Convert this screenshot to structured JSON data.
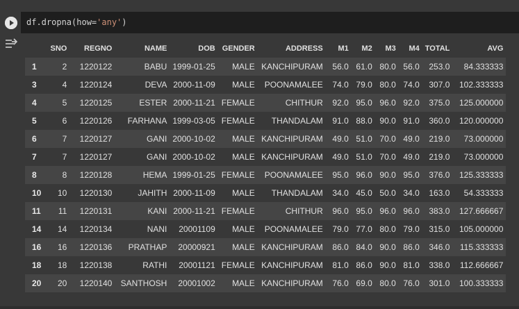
{
  "cell": {
    "code_prefix": "df.dropna(how=",
    "code_string": "'any'",
    "code_suffix": ")"
  },
  "icons": {
    "run": "play-icon",
    "output": "output-toggle-icon"
  },
  "table": {
    "columns": [
      "",
      "SNO",
      "REGNO",
      "NAME",
      "DOB",
      "GENDER",
      "ADDRESS",
      "M1",
      "M2",
      "M3",
      "M4",
      "TOTAL",
      "AVG"
    ],
    "rows": [
      [
        "1",
        "2",
        "1220122",
        "BABU",
        "1999-01-25",
        "MALE",
        "KANCHIPURAM",
        "56.0",
        "61.0",
        "80.0",
        "56.0",
        "253.0",
        "84.333333"
      ],
      [
        "3",
        "4",
        "1220124",
        "DEVA",
        "2000-11-09",
        "MALE",
        "POONAMALEE",
        "74.0",
        "79.0",
        "80.0",
        "74.0",
        "307.0",
        "102.333333"
      ],
      [
        "4",
        "5",
        "1220125",
        "ESTER",
        "2000-11-21",
        "FEMALE",
        "CHITHUR",
        "92.0",
        "95.0",
        "96.0",
        "92.0",
        "375.0",
        "125.000000"
      ],
      [
        "5",
        "6",
        "1220126",
        "FARHANA",
        "1999-03-05",
        "FEMALE",
        "THANDALAM",
        "91.0",
        "88.0",
        "90.0",
        "91.0",
        "360.0",
        "120.000000"
      ],
      [
        "6",
        "7",
        "1220127",
        "GANI",
        "2000-10-02",
        "MALE",
        "KANCHIPURAM",
        "49.0",
        "51.0",
        "70.0",
        "49.0",
        "219.0",
        "73.000000"
      ],
      [
        "7",
        "7",
        "1220127",
        "GANI",
        "2000-10-02",
        "MALE",
        "KANCHIPURAM",
        "49.0",
        "51.0",
        "70.0",
        "49.0",
        "219.0",
        "73.000000"
      ],
      [
        "8",
        "8",
        "1220128",
        "HEMA",
        "1999-01-25",
        "FEMALE",
        "POONAMALEE",
        "95.0",
        "96.0",
        "90.0",
        "95.0",
        "376.0",
        "125.333333"
      ],
      [
        "10",
        "10",
        "1220130",
        "JAHITH",
        "2000-11-09",
        "MALE",
        "THANDALAM",
        "34.0",
        "45.0",
        "50.0",
        "34.0",
        "163.0",
        "54.333333"
      ],
      [
        "11",
        "11",
        "1220131",
        "KANI",
        "2000-11-21",
        "FEMALE",
        "CHITHUR",
        "96.0",
        "95.0",
        "96.0",
        "96.0",
        "383.0",
        "127.666667"
      ],
      [
        "14",
        "14",
        "1220134",
        "NANI",
        "20001109",
        "MALE",
        "POONAMALEE",
        "79.0",
        "77.0",
        "80.0",
        "79.0",
        "315.0",
        "105.000000"
      ],
      [
        "16",
        "16",
        "1220136",
        "PRATHAP",
        "20000921",
        "MALE",
        "KANCHIPURAM",
        "86.0",
        "84.0",
        "90.0",
        "86.0",
        "346.0",
        "115.333333"
      ],
      [
        "18",
        "18",
        "1220138",
        "RATHI",
        "20001121",
        "FEMALE",
        "KANCHIPURAM",
        "81.0",
        "86.0",
        "90.0",
        "81.0",
        "338.0",
        "112.666667"
      ],
      [
        "20",
        "20",
        "1220140",
        "SANTHOSH",
        "20001002",
        "MALE",
        "KANCHIPURAM",
        "76.0",
        "69.0",
        "80.0",
        "76.0",
        "301.0",
        "100.333333"
      ]
    ]
  }
}
